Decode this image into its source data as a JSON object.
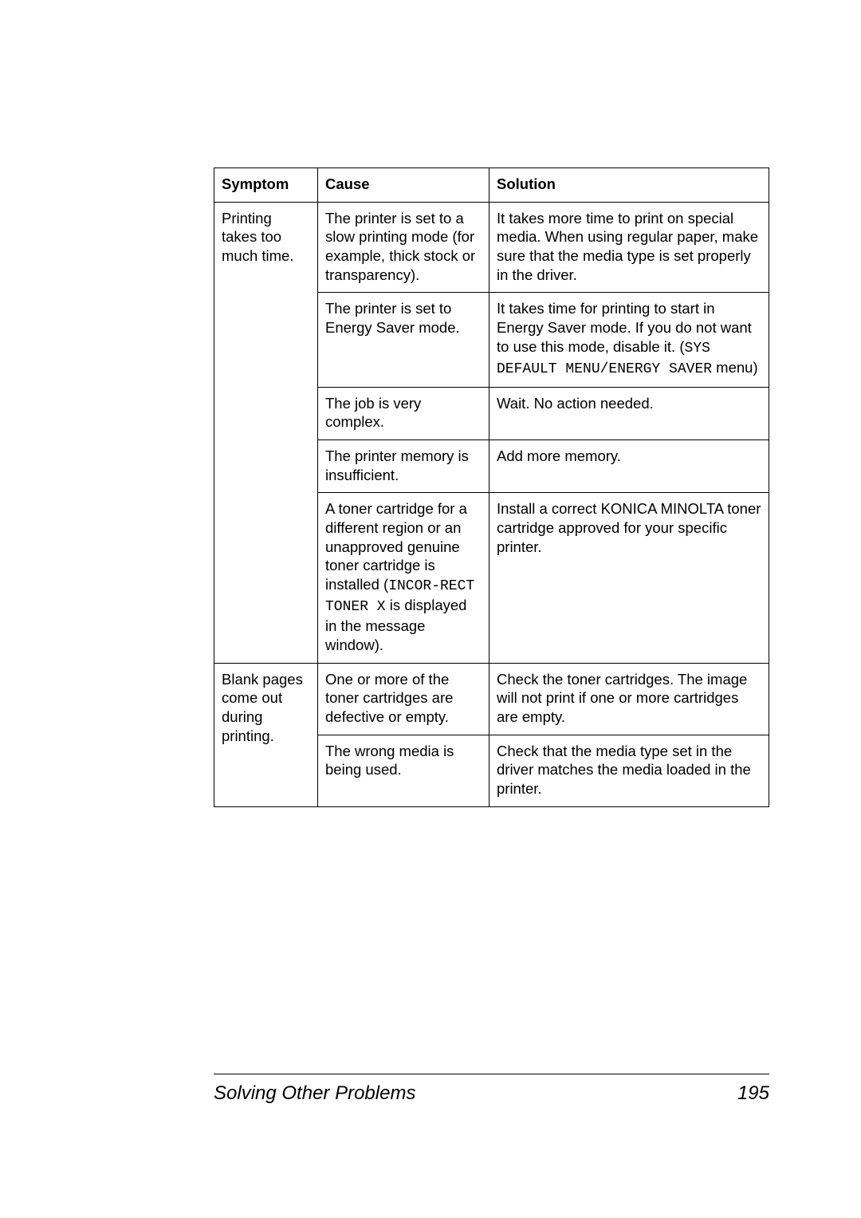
{
  "table": {
    "header": {
      "symptom": "Symptom",
      "cause": "Cause",
      "solution": "Solution"
    },
    "rows": [
      {
        "symptom": "Printing takes too much time.",
        "cause_html": "The printer is set to a slow printing mode (for example, thick stock or transparency).",
        "solution_html": "It takes more time to print on special media. When using regular paper, make sure that the media type is set properly in the driver."
      },
      {
        "cause_html": "The printer is set to Energy Saver mode.",
        "solution_html": "It takes time for printing to start in Energy Saver mode. If you do not want to use this mode, disable it. (<span class=\"mono\">SYS DEFAULT MENU/ENERGY SAVER</span> menu)"
      },
      {
        "cause_html": "The job is very complex.",
        "solution_html": "Wait. No action needed."
      },
      {
        "cause_html": "The printer memory is insufficient.",
        "solution_html": "Add more memory."
      },
      {
        "cause_html": "A toner cartridge for a different region or an unapproved genuine toner cartridge is installed (<span class=\"mono\">INCOR-RECT TONER X</span> is displayed in the message window).",
        "solution_html": "Install a correct KONICA MINOLTA toner cartridge approved for your specific printer."
      },
      {
        "symptom": "Blank pages come out during printing.",
        "cause_html": "One or more of the toner cartridges are defective or empty.",
        "solution_html": "Check the toner cartridges. The image will not print if one or more cartridges are empty."
      },
      {
        "cause_html": "The wrong media is being used.",
        "solution_html": "Check that the media type set in the driver matches the media loaded in the printer."
      }
    ]
  },
  "footer": {
    "title": "Solving Other Problems",
    "page": "195"
  },
  "colors": {
    "text": "#000000",
    "background": "#ffffff",
    "border": "#000000"
  },
  "typography": {
    "body_fontsize": 18.5,
    "footer_fontsize": 24,
    "mono_fontsize": 18
  }
}
